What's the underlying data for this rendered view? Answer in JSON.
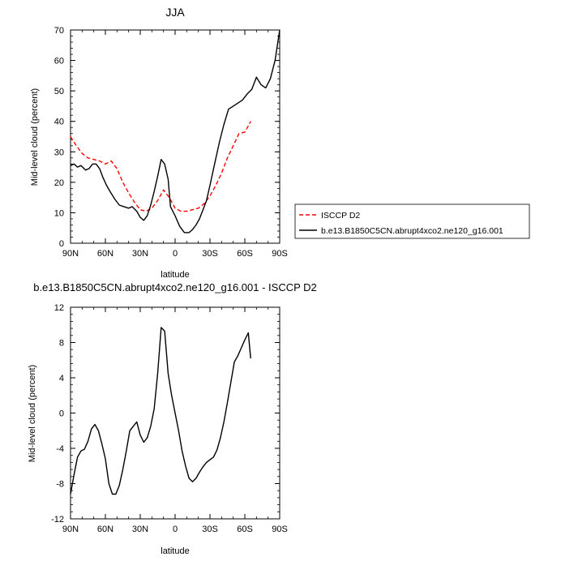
{
  "chart_data": [
    {
      "type": "line",
      "title": "JJA",
      "xlabel": "latitude",
      "ylabel": "Mid-level cloud (percent)",
      "xlim": [
        90,
        -90
      ],
      "ylim": [
        0,
        70
      ],
      "xticks": [
        90,
        60,
        30,
        0,
        -30,
        -60,
        -90
      ],
      "xtick_labels": [
        "90N",
        "60N",
        "30N",
        "0",
        "30S",
        "60S",
        "90S"
      ],
      "yticks": [
        0,
        10,
        20,
        30,
        40,
        50,
        60,
        70
      ],
      "ytick_labels": [
        "0",
        "10",
        "20",
        "30",
        "40",
        "50",
        "60",
        "70"
      ],
      "grid": false,
      "legend_position": "right",
      "series": [
        {
          "name": "ISCCP D2",
          "color": "#ff0000",
          "dash": "dashed",
          "x": [
            90,
            85,
            80,
            75,
            70,
            65,
            60,
            55,
            50,
            45,
            40,
            35,
            30,
            25,
            20,
            15,
            10,
            5,
            0,
            -5,
            -10,
            -15,
            -20,
            -25,
            -30,
            -35,
            -40,
            -45,
            -50,
            -55,
            -60,
            -63,
            -65
          ],
          "y": [
            35,
            32,
            29.5,
            28,
            27.5,
            27,
            26,
            27,
            24.5,
            20,
            16.5,
            13.5,
            11,
            10.5,
            11.5,
            14,
            17.5,
            15,
            11.5,
            10.5,
            10.5,
            11,
            11.5,
            13,
            15.5,
            19,
            23,
            28,
            32,
            36,
            36.5,
            38.5,
            40
          ]
        },
        {
          "name": "b.e13.B1850C5CN.abrupt4xco2.ne120_g16.001",
          "color": "#000000",
          "dash": "solid",
          "x": [
            90,
            87,
            84,
            81,
            77,
            74,
            71,
            68,
            65,
            62,
            59,
            56,
            52,
            48,
            44,
            40,
            37,
            33,
            30,
            27,
            24,
            21,
            18,
            15,
            12,
            9,
            6,
            4,
            0,
            -4,
            -8,
            -12,
            -15,
            -18,
            -21,
            -24,
            -27,
            -30,
            -34,
            -38,
            -42,
            -46,
            -50,
            -54,
            -58,
            -62,
            -66,
            -70,
            -74,
            -78,
            -82,
            -86,
            -90
          ],
          "y": [
            25.5,
            26,
            25,
            25.5,
            24,
            24.5,
            26,
            26,
            24.5,
            21.5,
            19,
            17,
            14.5,
            12.5,
            12,
            11.5,
            12,
            10.5,
            8.5,
            7.5,
            9,
            12.5,
            17,
            22,
            27.5,
            26,
            21,
            12,
            9,
            5.5,
            3.5,
            3.5,
            4.5,
            6,
            8,
            11,
            14,
            19,
            26,
            33,
            39,
            44,
            45,
            46,
            47,
            49,
            50.5,
            54.5,
            52,
            51,
            54,
            60,
            70
          ]
        }
      ]
    },
    {
      "type": "line",
      "title": "b.e13.B1850C5CN.abrupt4xco2.ne120_g16.001 - ISCCP D2",
      "xlabel": "latitude",
      "ylabel": "Mid-level cloud (percent)",
      "xlim": [
        90,
        -90
      ],
      "ylim": [
        -12,
        12
      ],
      "xticks": [
        90,
        60,
        30,
        0,
        -30,
        -60,
        -90
      ],
      "xtick_labels": [
        "90N",
        "60N",
        "30N",
        "0",
        "30S",
        "60S",
        "90S"
      ],
      "yticks": [
        -12,
        -8,
        -4,
        0,
        4,
        8,
        12
      ],
      "ytick_labels": [
        "-12",
        "-8",
        "-4",
        "0",
        "4",
        "8",
        "12"
      ],
      "grid": false,
      "series": [
        {
          "color": "#000000",
          "dash": "solid",
          "x": [
            90,
            87,
            84,
            81,
            78,
            75,
            72,
            69,
            66,
            63,
            60,
            57,
            54,
            51,
            48,
            45,
            42,
            39,
            36,
            33,
            30,
            27,
            24,
            21,
            18,
            15,
            12,
            9,
            6,
            3,
            0,
            -3,
            -6,
            -9,
            -12,
            -15,
            -18,
            -21,
            -24,
            -27,
            -30,
            -33,
            -36,
            -39,
            -42,
            -45,
            -48,
            -51,
            -54,
            -57,
            -60,
            -63,
            -65
          ],
          "y": [
            -9.2,
            -7,
            -5,
            -4.3,
            -4.1,
            -3.2,
            -1.8,
            -1.3,
            -2,
            -3.5,
            -5.2,
            -8,
            -9.2,
            -9.2,
            -8.2,
            -6.4,
            -4.3,
            -2,
            -1.5,
            -1,
            -2.5,
            -3.3,
            -2.8,
            -1.5,
            0.5,
            4.5,
            9.7,
            9.3,
            4.5,
            2,
            0,
            -2,
            -4.3,
            -6,
            -7.4,
            -7.8,
            -7.4,
            -6.7,
            -6.1,
            -5.6,
            -5.3,
            -5,
            -4.2,
            -2.8,
            -1,
            1.2,
            3.5,
            5.8,
            6.5,
            7.4,
            8.3,
            9.1,
            6.2
          ]
        }
      ]
    }
  ]
}
